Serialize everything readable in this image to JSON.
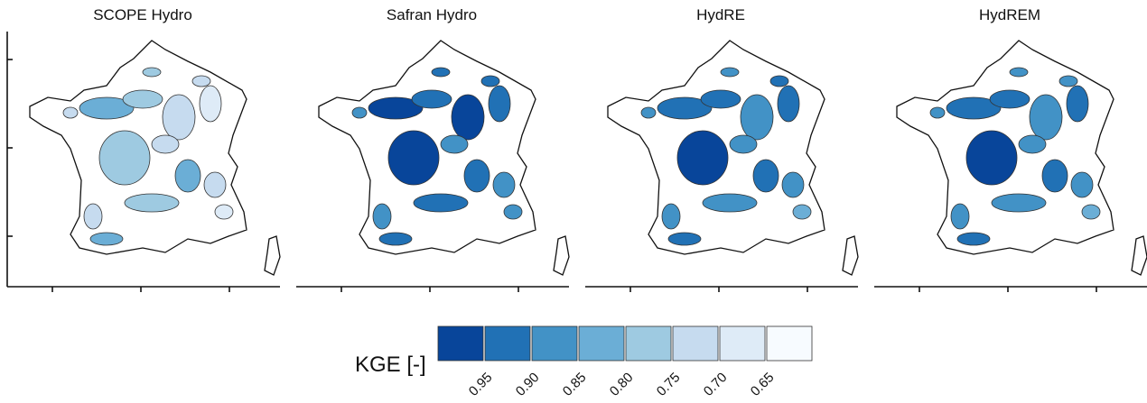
{
  "panels": [
    {
      "title": "SCOPE Hydro"
    },
    {
      "title": "Safran Hydro"
    },
    {
      "title": "HydRE"
    },
    {
      "title": "HydREM"
    }
  ],
  "legend": {
    "title": "KGE [-]",
    "colors": [
      "#08459a",
      "#2171b5",
      "#4292c6",
      "#6baed6",
      "#9ecae1",
      "#c6dbef",
      "#deebf7",
      "#f7fbff"
    ],
    "labels": [
      "0.95",
      "0.90",
      "0.85",
      "0.80",
      "0.75",
      "0.70",
      "0.65"
    ]
  }
}
